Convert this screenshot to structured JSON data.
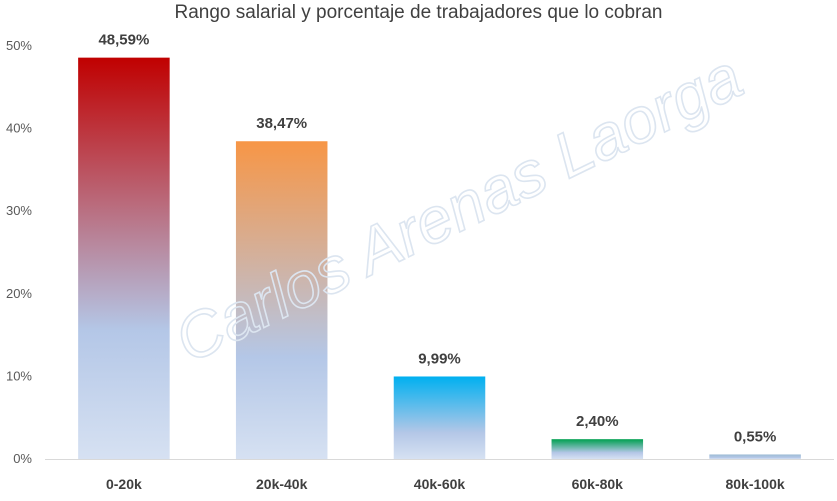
{
  "chart_data": {
    "type": "bar",
    "title": "Rango salarial y porcentaje de trabajadores que lo cobran",
    "xlabel": "",
    "ylabel": "",
    "categories": [
      "0-20k",
      "20k-40k",
      "40k-60k",
      "60k-80k",
      "80k-100k"
    ],
    "values": [
      48.59,
      38.47,
      9.99,
      2.4,
      0.55
    ],
    "data_labels": [
      "48,59%",
      "38,47%",
      "9,99%",
      "2,40%",
      "0,55%"
    ],
    "ylim": [
      0,
      50
    ],
    "yticks": [
      0,
      10,
      20,
      30,
      40,
      50
    ],
    "ytick_labels": [
      "0%",
      "10%",
      "20%",
      "30%",
      "40%",
      "50%"
    ],
    "grid": false,
    "legend": "none",
    "bar_top_colors": [
      "#C00000",
      "#F79646",
      "#00B0F0",
      "#00A050",
      "#9BBBD4"
    ],
    "bar_base_color": "#B4C7E7",
    "watermark": "Carlos Arenas Laorga"
  }
}
